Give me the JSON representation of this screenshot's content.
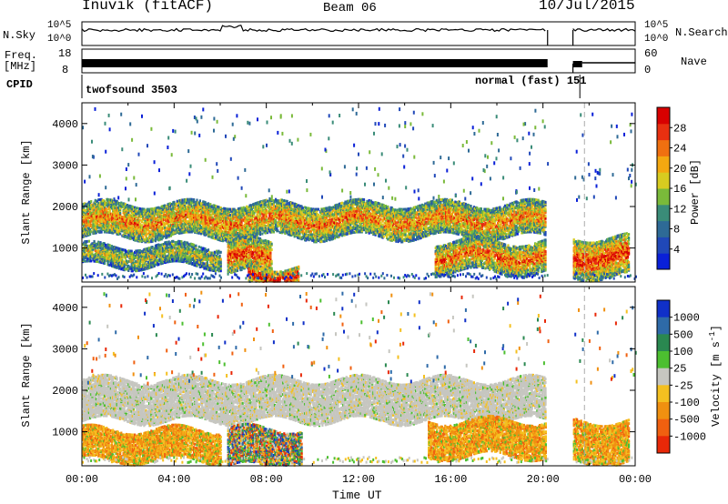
{
  "header": {
    "title": "Inuvik (fitACF)",
    "beam": "Beam 06",
    "date": "10/Jul/2015"
  },
  "strips": {
    "nsky_label": "N.Sky",
    "nsky_ticks": [
      "10^5",
      "10^0"
    ],
    "nsearch_label": "N.Search",
    "nsearch_ticks": [
      "10^5",
      "10^0"
    ],
    "freq_label": "Freq.",
    "freq_unit": "[MHz]",
    "freq_ticks": [
      "18",
      "8"
    ],
    "nave_label": "Nave",
    "nave_ticks": [
      "60",
      "0"
    ],
    "cpid_label": "CPID",
    "cpid_segments": [
      {
        "name": "twofsound 3503",
        "start_hour": 0,
        "end_hour": 21.6
      },
      {
        "name": "normal (fast) 151",
        "start_hour": 21.6,
        "end_hour": 24
      }
    ]
  },
  "chart_data": [
    {
      "type": "heatmap",
      "title": "",
      "xlabel": "",
      "ylabel": "Slant Range [km]",
      "x_unit": "hour UT",
      "xlim": [
        0,
        24
      ],
      "ylim": [
        180,
        4500
      ],
      "y_ticks": [
        1000,
        2000,
        3000,
        4000
      ],
      "data_gap_hours": [
        [
          20.2,
          21.3
        ]
      ],
      "scan_markers_hours": [
        21.8
      ],
      "colorbar": {
        "label": "Power [dB]",
        "ticks": [
          4,
          8,
          12,
          16,
          20,
          24,
          28
        ],
        "range": [
          0,
          32
        ],
        "colors": [
          "#0a20d8",
          "#2048b8",
          "#2e6a96",
          "#3a8c78",
          "#7aba3a",
          "#d8cc20",
          "#f4a810",
          "#f07010",
          "#e83010",
          "#d80000"
        ]
      },
      "bands": [
        {
          "from_hour": 0.0,
          "to_hour": 20.1,
          "range_start": 1300,
          "range_end": 2100,
          "level": 0.75,
          "note": "main echo band"
        },
        {
          "from_hour": 0.0,
          "to_hour": 6.0,
          "range_start": 600,
          "range_end": 1100,
          "level": 0.55
        },
        {
          "from_hour": 6.3,
          "to_hour": 8.2,
          "range_start": 400,
          "range_end": 1200,
          "level": 0.85
        },
        {
          "from_hour": 7.2,
          "to_hour": 9.4,
          "range_start": 180,
          "range_end": 600,
          "level": 0.95
        },
        {
          "from_hour": 15.3,
          "to_hour": 20.1,
          "range_start": 450,
          "range_end": 1200,
          "level": 0.8
        },
        {
          "from_hour": 21.3,
          "to_hour": 23.7,
          "range_start": 350,
          "range_end": 1300,
          "level": 0.9
        }
      ]
    },
    {
      "type": "heatmap",
      "title": "",
      "xlabel": "Time UT",
      "ylabel": "Slant Range [km]",
      "x_unit": "hour UT",
      "xlim": [
        0,
        24
      ],
      "ylim": [
        180,
        4500
      ],
      "y_ticks": [
        1000,
        2000,
        3000,
        4000
      ],
      "x_ticks": [
        "00:00",
        "04:00",
        "08:00",
        "12:00",
        "16:00",
        "20:00",
        "00:00"
      ],
      "data_gap_hours": [
        [
          20.2,
          21.3
        ]
      ],
      "scan_markers_hours": [
        21.8
      ],
      "colorbar": {
        "label": "Velocity [m s",
        "label_sup": "-1",
        "label_end": "]",
        "ticks": [
          "1000",
          "500",
          "100",
          "25",
          "-25",
          "-100",
          "-500",
          "-1000"
        ],
        "colors": [
          "#1030c8",
          "#2e6aa8",
          "#2a8850",
          "#4cbf30",
          "#c6c6c0",
          "#f4c020",
          "#f09010",
          "#f06010",
          "#e82808"
        ]
      },
      "bands": [
        {
          "from_hour": 0.0,
          "to_hour": 20.1,
          "range_start": 1300,
          "range_end": 2300,
          "velocity": "ground scatter (grey)"
        },
        {
          "from_hour": 0.0,
          "to_hour": 6.0,
          "range_start": 350,
          "range_end": 1100,
          "velocity": "-100 to -500"
        },
        {
          "from_hour": 6.3,
          "to_hour": 9.5,
          "range_start": 200,
          "range_end": 1100,
          "velocity": "mixed"
        },
        {
          "from_hour": 15.0,
          "to_hour": 20.1,
          "range_start": 450,
          "range_end": 1300,
          "velocity": "-100 to -500"
        },
        {
          "from_hour": 21.3,
          "to_hour": 23.7,
          "range_start": 300,
          "range_end": 1300,
          "velocity": "-100 to -500"
        }
      ]
    }
  ]
}
